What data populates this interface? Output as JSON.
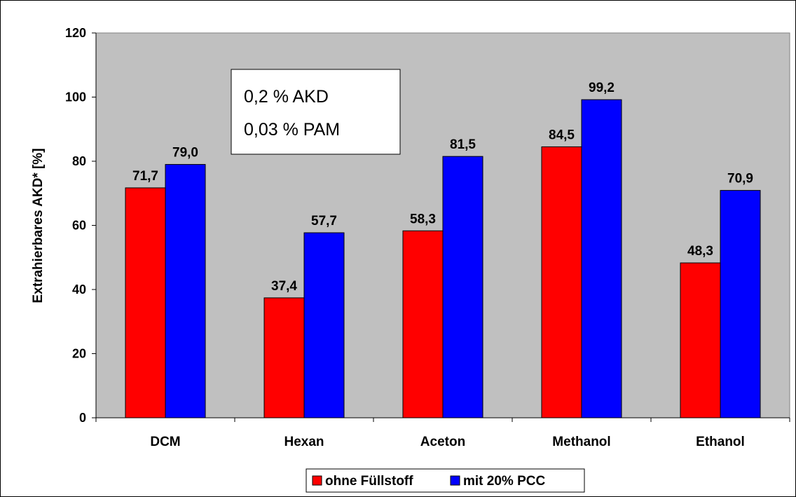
{
  "chart_data": {
    "type": "bar",
    "categories": [
      "DCM",
      "Hexan",
      "Aceton",
      "Methanol",
      "Ethanol"
    ],
    "series": [
      {
        "name": "ohne Füllstoff",
        "color": "#ff0000",
        "values": [
          71.7,
          37.4,
          58.3,
          84.5,
          48.3
        ],
        "labels": [
          "71,7",
          "37,4",
          "58,3",
          "84,5",
          "48,3"
        ]
      },
      {
        "name": "mit 20% PCC",
        "color": "#0000ff",
        "values": [
          79.0,
          57.7,
          81.5,
          99.2,
          70.9
        ],
        "labels": [
          "79,0",
          "57,7",
          "81,5",
          "99,2",
          "70,9"
        ]
      }
    ],
    "ylabel": "Extrahierbares AKD* [%]",
    "xlabel": "",
    "ylim": [
      0,
      120
    ],
    "yticks": [
      0,
      20,
      40,
      60,
      80,
      100,
      120
    ],
    "grid": false,
    "plot_background": "#c0c0c0",
    "legend_position": "bottom",
    "annotation": {
      "lines": [
        "0,2 % AKD",
        "0,03 % PAM"
      ]
    }
  }
}
